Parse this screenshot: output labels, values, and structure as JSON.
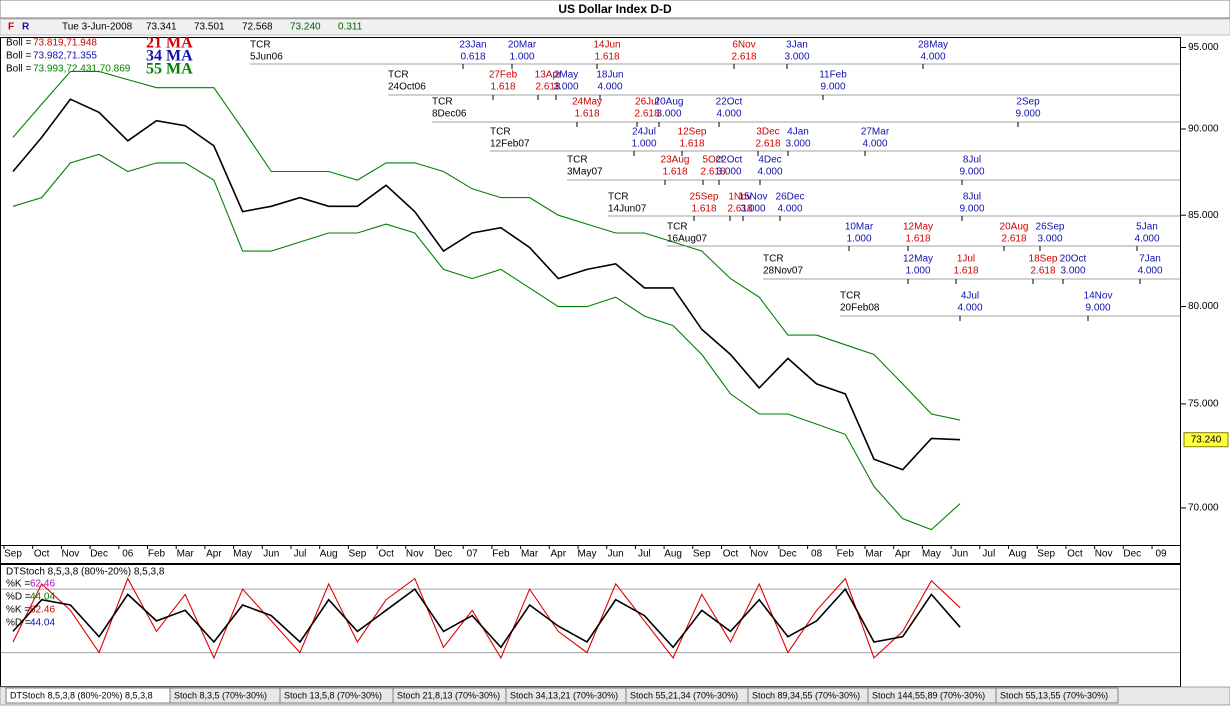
{
  "header": {
    "flags": [
      "F",
      "R"
    ],
    "date": "Tue 3-Jun-2008",
    "quote": [
      "73.341",
      "73.501",
      "72.568",
      "73.240",
      "0.311"
    ]
  },
  "indicators": [
    {
      "label": "Boll =",
      "text": "73.819,71.948",
      "color": "#d00000",
      "ma": "21 MA"
    },
    {
      "label": "Boll =",
      "text": "73.982,71.355",
      "color": "#1010b0",
      "ma": "34 MA"
    },
    {
      "label": "Boll =",
      "text": "73.993,72.431,70.869",
      "color": "#008000",
      "ma": "55 MA"
    }
  ],
  "tcr_rows": [
    {
      "label": "TCR",
      "date": "5Jun06",
      "targets": [
        {
          "date": "23Jan",
          "ratio": "0.618",
          "color": "#1010b0"
        },
        {
          "date": "20Mar",
          "ratio": "1.000",
          "color": "#1010b0"
        },
        {
          "date": "14Jun",
          "ratio": "1.618",
          "color": "#d00000"
        },
        {
          "date": "6Nov",
          "ratio": "2.618",
          "color": "#d00000"
        },
        {
          "date": "3Jan",
          "ratio": "3.000",
          "color": "#1010b0"
        },
        {
          "date": "28May",
          "ratio": "4.000",
          "color": "#1010b0"
        }
      ]
    },
    {
      "label": "TCR",
      "date": "24Oct06",
      "targets": [
        {
          "date": "27Feb",
          "ratio": "1.618",
          "color": "#d00000"
        },
        {
          "date": "13Apr",
          "ratio": "2.618",
          "color": "#d00000"
        },
        {
          "date": "2May",
          "ratio": "3.000",
          "color": "#1010b0"
        },
        {
          "date": "18Jun",
          "ratio": "4.000",
          "color": "#1010b0"
        },
        {
          "date": "11Feb",
          "ratio": "9.000",
          "color": "#1010b0"
        }
      ]
    },
    {
      "label": "TCR",
      "date": "8Dec06",
      "targets": [
        {
          "date": "24May",
          "ratio": "1.618",
          "color": "#d00000"
        },
        {
          "date": "26Jul",
          "ratio": "2.618",
          "color": "#d00000"
        },
        {
          "date": "20Aug",
          "ratio": "3.000",
          "color": "#1010b0"
        },
        {
          "date": "22Oct",
          "ratio": "4.000",
          "color": "#1010b0"
        },
        {
          "date": "2Sep",
          "ratio": "9.000",
          "color": "#1010b0"
        }
      ]
    },
    {
      "label": "TCR",
      "date": "12Feb07",
      "targets": [
        {
          "date": "24Jul",
          "ratio": "1.000",
          "color": "#1010b0"
        },
        {
          "date": "12Sep",
          "ratio": "1.618",
          "color": "#d00000"
        },
        {
          "date": "3Dec",
          "ratio": "2.618",
          "color": "#d00000"
        },
        {
          "date": "4Jan",
          "ratio": "3.000",
          "color": "#1010b0"
        },
        {
          "date": "27Mar",
          "ratio": "4.000",
          "color": "#1010b0"
        }
      ]
    },
    {
      "label": "TCR",
      "date": "3May07",
      "targets": [
        {
          "date": "23Aug",
          "ratio": "1.618",
          "color": "#d00000"
        },
        {
          "date": "5Oct",
          "ratio": "2.618",
          "color": "#d00000"
        },
        {
          "date": "22Oct",
          "ratio": "3.000",
          "color": "#1010b0"
        },
        {
          "date": "4Dec",
          "ratio": "4.000",
          "color": "#1010b0"
        },
        {
          "date": "8Jul",
          "ratio": "9.000",
          "color": "#1010b0"
        }
      ]
    },
    {
      "label": "TCR",
      "date": "14Jun07",
      "targets": [
        {
          "date": "25Sep",
          "ratio": "1.618",
          "color": "#d00000"
        },
        {
          "date": "1Nov",
          "ratio": "2.618",
          "color": "#d00000"
        },
        {
          "date": "15Nov",
          "ratio": "3.000",
          "color": "#1010b0"
        },
        {
          "date": "26Dec",
          "ratio": "4.000",
          "color": "#1010b0"
        },
        {
          "date": "8Jul",
          "ratio": "9.000",
          "color": "#1010b0"
        }
      ]
    },
    {
      "label": "TCR",
      "date": "16Aug07",
      "targets": [
        {
          "date": "10Mar",
          "ratio": "1.000",
          "color": "#1010b0"
        },
        {
          "date": "12May",
          "ratio": "1.618",
          "color": "#d00000"
        },
        {
          "date": "20Aug",
          "ratio": "2.618",
          "color": "#d00000"
        },
        {
          "date": "26Sep",
          "ratio": "3.000",
          "color": "#1010b0"
        },
        {
          "date": "5Jan",
          "ratio": "4.000",
          "color": "#1010b0"
        }
      ]
    },
    {
      "label": "TCR",
      "date": "28Nov07",
      "targets": [
        {
          "date": "12May",
          "ratio": "1.000",
          "color": "#1010b0"
        },
        {
          "date": "1Jul",
          "ratio": "1.618",
          "color": "#d00000"
        },
        {
          "date": "18Sep",
          "ratio": "2.618",
          "color": "#d00000"
        },
        {
          "date": "20Oct",
          "ratio": "3.000",
          "color": "#1010b0"
        },
        {
          "date": "7Jan",
          "ratio": "4.000",
          "color": "#1010b0"
        }
      ]
    },
    {
      "label": "TCR",
      "date": "20Feb08",
      "targets": [
        {
          "date": "4Jul",
          "ratio": "4.000",
          "color": "#1010b0"
        },
        {
          "date": "14Nov",
          "ratio": "9.000",
          "color": "#1010b0"
        }
      ]
    }
  ],
  "chart_data": [
    {
      "type": "line",
      "title": "US Dollar Index  D-D",
      "log": true,
      "categories": [
        "Sep",
        "Oct",
        "Nov",
        "Dec",
        "06",
        "Feb",
        "Mar",
        "Apr",
        "May",
        "Jun",
        "Jul",
        "Aug",
        "Sep",
        "Oct",
        "Nov",
        "Dec",
        "07",
        "Feb",
        "Mar",
        "Apr",
        "May",
        "Jun",
        "Jul",
        "Aug",
        "Sep",
        "Oct",
        "Nov",
        "Dec",
        "08",
        "Feb",
        "Mar",
        "Apr",
        "May",
        "Jun",
        "Jul",
        "Aug",
        "Sep",
        "Oct",
        "Nov",
        "Dec",
        "09"
      ],
      "ylim": [
        68.3,
        95.6
      ],
      "yticks": [
        {
          "value": 70,
          "label": "70.000"
        },
        {
          "value": 75,
          "label": "75.000"
        },
        {
          "value": 80,
          "label": "80.000"
        },
        {
          "value": 85,
          "label": "85.000"
        },
        {
          "value": 90,
          "label": "90.000"
        },
        {
          "value": 95,
          "label": "95.000"
        }
      ],
      "last": {
        "value": 73.24,
        "label": "73.240",
        "color": "#ffff40"
      },
      "series": [
        {
          "color": "#008000",
          "values": [
            89.5,
            91.5,
            93.5,
            93.5,
            93,
            92.5,
            92.5,
            92.5,
            90,
            87.5,
            87.5,
            87.5,
            87,
            88,
            88,
            87.5,
            86.5,
            86,
            86,
            85,
            84.5,
            84,
            84,
            83.5,
            83,
            81.5,
            80.5,
            78.5,
            78.5,
            78,
            77.5,
            76,
            74.5,
            74.2,
            null,
            null,
            null,
            null,
            null,
            null,
            null
          ]
        },
        {
          "color": "#008000",
          "values": [
            85.5,
            86,
            88,
            88.5,
            87.5,
            88,
            88,
            87,
            83,
            83,
            83.5,
            84,
            84,
            84.5,
            84,
            82,
            81.5,
            82,
            81,
            80,
            80,
            80.5,
            79.5,
            79,
            77.5,
            75.5,
            74.5,
            74.5,
            74,
            73.5,
            71,
            69.5,
            69,
            70.2,
            null,
            null,
            null,
            null,
            null,
            null,
            null
          ]
        },
        {
          "color": "#000000",
          "values": [
            87.5,
            89.5,
            91.8,
            91,
            89.3,
            90.5,
            90.2,
            89,
            85.2,
            85.5,
            86,
            85.5,
            85.5,
            86.7,
            85.2,
            83,
            84,
            84.3,
            83.2,
            81.5,
            82,
            82.3,
            81,
            81,
            78.8,
            77.5,
            75.8,
            77.3,
            76,
            75.5,
            72.3,
            71.8,
            73.3,
            73.24,
            null,
            null,
            null,
            null,
            null,
            null,
            null
          ]
        }
      ]
    },
    {
      "type": "line",
      "title": "DTStoch 8,5,3,8 (80%-20%) 8,5,3,8",
      "ylim": [
        -5,
        100
      ],
      "levels": [
        20,
        80
      ],
      "readouts": [
        {
          "label": "%K =",
          "value": 62.46,
          "color": "#c000c0"
        },
        {
          "label": "%D =",
          "value": 44.04,
          "color": "#008000"
        },
        {
          "label": "%K =",
          "value": 62.46,
          "color": "#d00000"
        },
        {
          "label": "%D =",
          "value": 44.04,
          "color": "#1010b0"
        }
      ],
      "series": [
        {
          "color": "#e00000",
          "values": [
            30,
            85,
            60,
            20,
            90,
            40,
            75,
            15,
            80,
            50,
            20,
            85,
            30,
            70,
            90,
            25,
            60,
            15,
            80,
            40,
            20,
            85,
            50,
            15,
            75,
            30,
            85,
            20,
            60,
            90,
            15,
            40,
            88,
            62.46,
            null,
            null,
            null,
            null,
            null,
            null,
            null
          ]
        },
        {
          "color": "#000000",
          "values": [
            40,
            70,
            65,
            35,
            75,
            50,
            60,
            30,
            65,
            55,
            30,
            70,
            40,
            60,
            80,
            40,
            55,
            25,
            65,
            45,
            30,
            70,
            55,
            25,
            60,
            40,
            70,
            35,
            50,
            80,
            30,
            35,
            75,
            44.04,
            null,
            null,
            null,
            null,
            null,
            null,
            null
          ]
        }
      ]
    }
  ],
  "tabs": [
    "DTStoch 8,5,3,8 (80%-20%) 8,5,3,8",
    "Stoch 8,3,5 (70%-30%)",
    "Stoch 13,5,8 (70%-30%)",
    "Stoch 21,8,13 (70%-30%)",
    "Stoch 34,13,21 (70%-30%)",
    "Stoch 55,21,34 (70%-30%)",
    "Stoch 89,34,55 (70%-30%)",
    "Stoch 144,55,89 (70%-30%)",
    "Stoch 55,13,55 (70%-30%)"
  ]
}
